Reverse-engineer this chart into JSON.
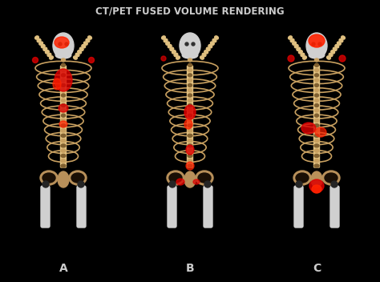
{
  "title": "CT/PET FUSED VOLUME RENDERING",
  "title_fontsize": 8.5,
  "title_color": "#cccccc",
  "background_color": "#000000",
  "panel_labels": [
    "A",
    "B",
    "C"
  ],
  "label_fontsize": 10,
  "label_color": "#cccccc",
  "figsize": [
    4.74,
    3.52
  ],
  "dpi": 100,
  "bone_color": "#c8a060",
  "bone_light": "#e0c080",
  "bone_dark": "#806030",
  "skull_color": "#d0d0d0",
  "red_color": "#dd0000",
  "red_bright": "#ff2200",
  "pelvis_color": "#b8905a"
}
